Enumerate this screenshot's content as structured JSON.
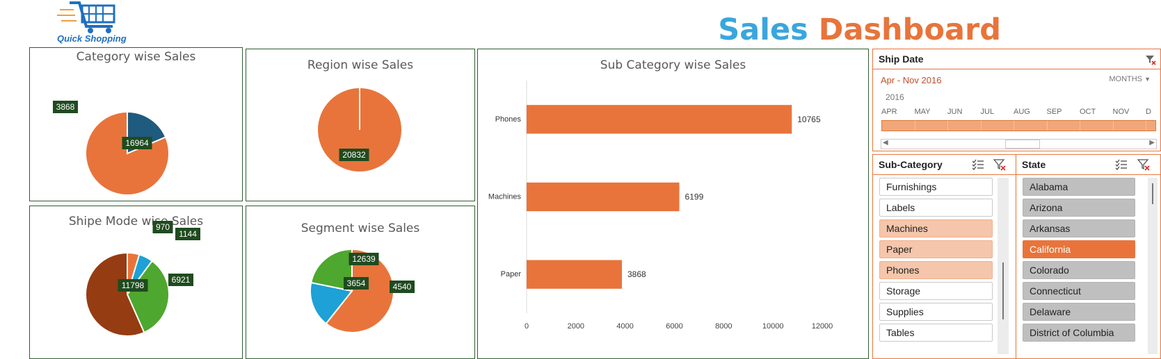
{
  "header": {
    "logo_text": "Quick Shopping",
    "title_word1": "Sales",
    "title_word2": "Dashboard",
    "title_color1": "#3aa6dd",
    "title_color2": "#e8743b"
  },
  "chart_data": [
    {
      "type": "pie",
      "title": "Category wise Sales",
      "slices": [
        {
          "label": "3868",
          "value": 3868,
          "color": "#1f5b7f"
        },
        {
          "label": "16964",
          "value": 16964,
          "color": "#e8743b"
        }
      ]
    },
    {
      "type": "pie",
      "title": "Region wise Sales",
      "slices": [
        {
          "label": "20832",
          "value": 20832,
          "color": "#e8743b"
        }
      ]
    },
    {
      "type": "pie",
      "title": "Shipe Mode wise Sales",
      "slices": [
        {
          "label": "970",
          "value": 970,
          "color": "#e8743b"
        },
        {
          "label": "1144",
          "value": 1144,
          "color": "#1da1d6"
        },
        {
          "label": "6921",
          "value": 6921,
          "color": "#4ea72e"
        },
        {
          "label": "11798",
          "value": 11798,
          "color": "#953c12"
        }
      ]
    },
    {
      "type": "pie",
      "title": "Segment wise Sales",
      "slices": [
        {
          "label": "12639",
          "value": 12639,
          "color": "#e8743b"
        },
        {
          "label": "3654",
          "value": 3654,
          "color": "#1da1d6"
        },
        {
          "label": "4540",
          "value": 4540,
          "color": "#4ea72e"
        }
      ]
    },
    {
      "type": "bar",
      "orientation": "horizontal",
      "title": "Sub Category wise Sales",
      "categories": [
        "Phones",
        "Machines",
        "Paper"
      ],
      "values": [
        10765,
        6199,
        3868
      ],
      "xlim": [
        0,
        12000
      ],
      "xticks": [
        0,
        2000,
        4000,
        6000,
        8000,
        10000,
        12000
      ],
      "color": "#e8743b",
      "grid": false
    }
  ],
  "ship_date": {
    "title": "Ship Date",
    "range_label": "Apr - Nov 2016",
    "level": "MONTHS",
    "year": "2016",
    "months": [
      "APR",
      "MAY",
      "JUN",
      "JUL",
      "AUG",
      "SEP",
      "OCT",
      "NOV",
      "D"
    ]
  },
  "subcategory": {
    "title": "Sub-Category",
    "items": [
      {
        "label": "Furnishings",
        "state": "white"
      },
      {
        "label": "Labels",
        "state": "white"
      },
      {
        "label": "Machines",
        "state": "peach"
      },
      {
        "label": "Paper",
        "state": "peach"
      },
      {
        "label": "Phones",
        "state": "peach"
      },
      {
        "label": "Storage",
        "state": "white"
      },
      {
        "label": "Supplies",
        "state": "white"
      },
      {
        "label": "Tables",
        "state": "white"
      }
    ]
  },
  "state_slicer": {
    "title": "State",
    "items": [
      {
        "label": "Alabama",
        "state": "gray"
      },
      {
        "label": "Arizona",
        "state": "gray"
      },
      {
        "label": "Arkansas",
        "state": "gray"
      },
      {
        "label": "California",
        "state": "sel"
      },
      {
        "label": "Colorado",
        "state": "gray"
      },
      {
        "label": "Connecticut",
        "state": "gray"
      },
      {
        "label": "Delaware",
        "state": "gray"
      },
      {
        "label": "District of Columbia",
        "state": "gray"
      }
    ]
  }
}
